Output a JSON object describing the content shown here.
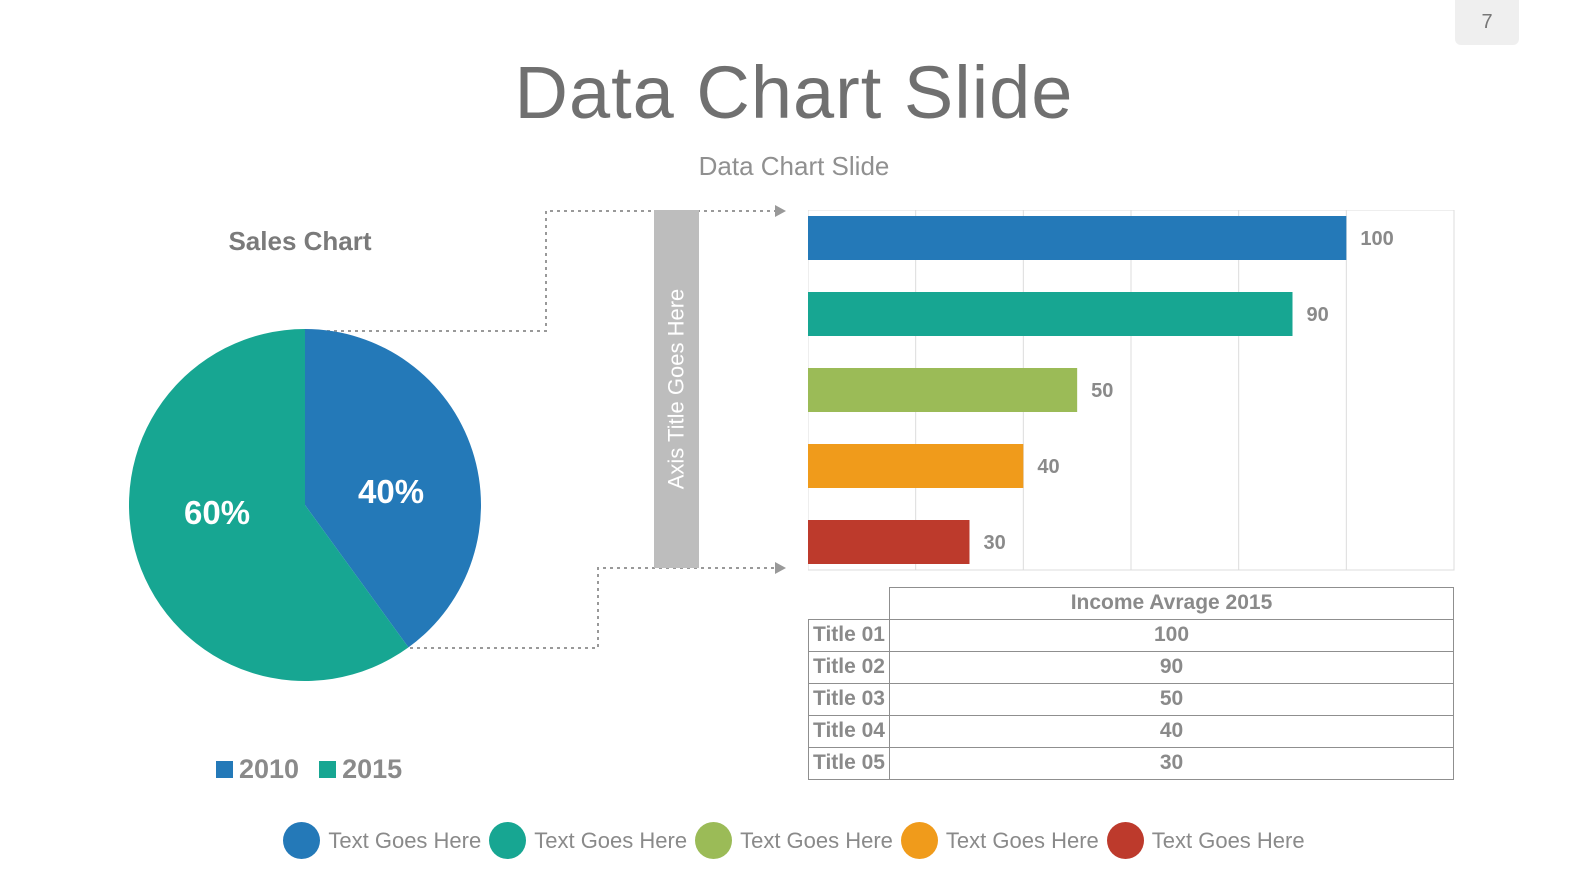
{
  "page_number": "7",
  "title": "Data Chart Slide",
  "subtitle": "Data Chart Slide",
  "axis_title": "Axis Title Goes Here",
  "colors": {
    "blue": "#2479b8",
    "teal": "#17a692",
    "green": "#9bbb57",
    "orange": "#f09b1b",
    "red": "#bd3a2c"
  },
  "chart_data": [
    {
      "type": "pie",
      "title": "Sales Chart",
      "slices": [
        {
          "name": "2010",
          "value": 40,
          "label": "40%",
          "color": "#2479b8"
        },
        {
          "name": "2015",
          "value": 60,
          "label": "60%",
          "color": "#17a692"
        }
      ],
      "legend": [
        "2010",
        "2015"
      ]
    },
    {
      "type": "bar",
      "orientation": "horizontal",
      "categories": [
        "Title 01",
        "Title 02",
        "Title 03",
        "Title 04",
        "Title 05"
      ],
      "values": [
        100,
        90,
        50,
        40,
        30
      ],
      "data_labels": [
        "100",
        "90",
        "50",
        "40",
        "30"
      ],
      "colors": [
        "#2479b8",
        "#17a692",
        "#9bbb57",
        "#f09b1b",
        "#bd3a2c"
      ],
      "xlim": [
        0,
        120
      ],
      "grid": true
    },
    {
      "type": "table",
      "header": "Income Avrage 2015",
      "rows": [
        {
          "label": "Title 01",
          "value": "100"
        },
        {
          "label": "Title 02",
          "value": "90"
        },
        {
          "label": "Title 03",
          "value": "50"
        },
        {
          "label": "Title 04",
          "value": "40"
        },
        {
          "label": "Title 05",
          "value": "30"
        }
      ]
    }
  ],
  "bottom_legend": [
    {
      "label": "Text Goes Here",
      "color": "#2479b8"
    },
    {
      "label": "Text Goes Here",
      "color": "#17a692"
    },
    {
      "label": "Text Goes Here",
      "color": "#9bbb57"
    },
    {
      "label": "Text Goes Here",
      "color": "#f09b1b"
    },
    {
      "label": "Text Goes Here",
      "color": "#bd3a2c"
    }
  ]
}
